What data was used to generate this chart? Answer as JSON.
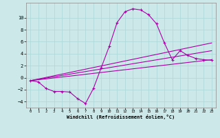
{
  "xlabel": "Windchill (Refroidissement éolien,°C)",
  "background_color": "#cce8e8",
  "line_color": "#aa00aa",
  "xlim": [
    -0.5,
    23.5
  ],
  "ylim": [
    -5.0,
    12.5
  ],
  "yticks": [
    -4,
    -2,
    0,
    2,
    4,
    6,
    8,
    10
  ],
  "xticks": [
    0,
    1,
    2,
    3,
    4,
    5,
    6,
    7,
    8,
    9,
    10,
    11,
    12,
    13,
    14,
    15,
    16,
    17,
    18,
    19,
    20,
    21,
    22,
    23
  ],
  "line1_x": [
    0,
    1,
    2,
    3,
    4,
    5,
    6,
    7,
    8,
    9,
    10,
    11,
    12,
    13,
    14,
    15,
    16,
    17,
    18,
    19,
    20,
    21,
    22,
    23
  ],
  "line1_y": [
    -0.5,
    -0.7,
    -1.8,
    -2.3,
    -2.3,
    -2.4,
    -3.5,
    -4.3,
    -1.8,
    1.7,
    5.2,
    9.2,
    11.0,
    11.5,
    11.3,
    10.5,
    9.0,
    5.8,
    3.0,
    4.5,
    3.7,
    3.2,
    3.0,
    2.9
  ],
  "line2_x": [
    0,
    23
  ],
  "line2_y": [
    -0.5,
    5.8
  ],
  "line3_x": [
    0,
    23
  ],
  "line3_y": [
    -0.5,
    4.5
  ],
  "line4_x": [
    0,
    23
  ],
  "line4_y": [
    -0.5,
    3.0
  ]
}
